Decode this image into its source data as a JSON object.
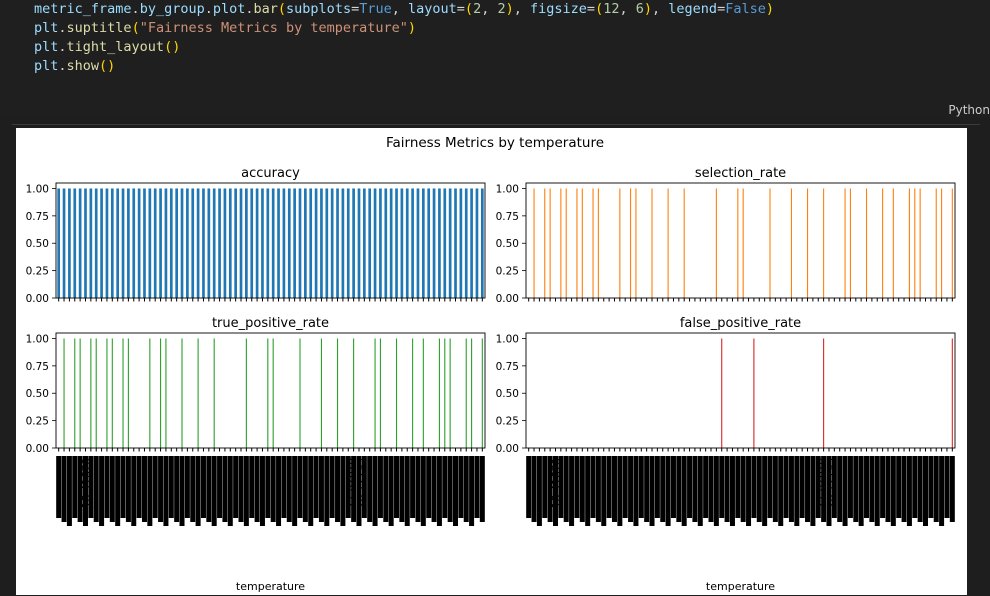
{
  "code": {
    "lines": [
      [
        {
          "t": "metric_frame",
          "c": "s-var"
        },
        {
          "t": ".",
          "c": "s-pun"
        },
        {
          "t": "by_group",
          "c": "s-var"
        },
        {
          "t": ".",
          "c": "s-pun"
        },
        {
          "t": "plot",
          "c": "s-var"
        },
        {
          "t": ".",
          "c": "s-pun"
        },
        {
          "t": "bar",
          "c": "s-fn"
        },
        {
          "t": "(",
          "c": "s-br"
        },
        {
          "t": "subplots",
          "c": "s-var"
        },
        {
          "t": "=",
          "c": "s-pun"
        },
        {
          "t": "True",
          "c": "s-kw"
        },
        {
          "t": ", ",
          "c": "s-pun"
        },
        {
          "t": "layout",
          "c": "s-var"
        },
        {
          "t": "=",
          "c": "s-pun"
        },
        {
          "t": "(",
          "c": "s-br"
        },
        {
          "t": "2",
          "c": "s-num"
        },
        {
          "t": ", ",
          "c": "s-pun"
        },
        {
          "t": "2",
          "c": "s-num"
        },
        {
          "t": ")",
          "c": "s-br"
        },
        {
          "t": ", ",
          "c": "s-pun"
        },
        {
          "t": "figsize",
          "c": "s-var"
        },
        {
          "t": "=",
          "c": "s-pun"
        },
        {
          "t": "(",
          "c": "s-br"
        },
        {
          "t": "12",
          "c": "s-num"
        },
        {
          "t": ", ",
          "c": "s-pun"
        },
        {
          "t": "6",
          "c": "s-num"
        },
        {
          "t": ")",
          "c": "s-br"
        },
        {
          "t": ", ",
          "c": "s-pun"
        },
        {
          "t": "legend",
          "c": "s-var"
        },
        {
          "t": "=",
          "c": "s-pun"
        },
        {
          "t": "False",
          "c": "s-kw"
        },
        {
          "t": ")",
          "c": "s-br"
        }
      ],
      [
        {
          "t": "plt",
          "c": "s-var"
        },
        {
          "t": ".",
          "c": "s-pun"
        },
        {
          "t": "suptitle",
          "c": "s-fn"
        },
        {
          "t": "(",
          "c": "s-br"
        },
        {
          "t": "\"Fairness Metrics by temperature\"",
          "c": "s-str"
        },
        {
          "t": ")",
          "c": "s-br"
        }
      ],
      [
        {
          "t": "plt",
          "c": "s-var"
        },
        {
          "t": ".",
          "c": "s-pun"
        },
        {
          "t": "tight_layout",
          "c": "s-fn"
        },
        {
          "t": "()",
          "c": "s-br"
        }
      ],
      [
        {
          "t": "plt",
          "c": "s-var"
        },
        {
          "t": ".",
          "c": "s-pun"
        },
        {
          "t": "show",
          "c": "s-fn"
        },
        {
          "t": "()",
          "c": "s-br"
        }
      ]
    ],
    "language_label": "Python"
  },
  "chart_data": {
    "type": "bar",
    "title": "Fairness Metrics by temperature",
    "xlabel": "temperature",
    "n_categories": 80,
    "visible_tick_labels": [
      "18.41670",
      "27.82620",
      "28.12795"
    ],
    "yticks": [
      "0.00",
      "0.25",
      "0.50",
      "0.75",
      "1.00"
    ],
    "ylim": [
      0,
      1.05
    ],
    "subplots": [
      {
        "name": "accuracy",
        "color": "#1f77b4",
        "values": [
          1,
          1,
          1,
          1,
          1,
          1,
          1,
          1,
          1,
          1,
          1,
          1,
          1,
          1,
          1,
          1,
          1,
          1,
          1,
          1,
          1,
          1,
          1,
          1,
          1,
          1,
          1,
          1,
          1,
          1,
          1,
          1,
          1,
          1,
          1,
          1,
          1,
          1,
          1,
          1,
          1,
          1,
          1,
          1,
          1,
          1,
          1,
          1,
          1,
          1,
          1,
          1,
          1,
          1,
          1,
          1,
          1,
          1,
          1,
          1,
          1,
          1,
          1,
          1,
          1,
          1,
          1,
          1,
          1,
          1,
          1,
          1,
          1,
          1,
          1,
          1,
          1,
          1,
          1,
          1
        ]
      },
      {
        "name": "selection_rate",
        "color": "#ff7f0e",
        "values": [
          0,
          1,
          0,
          1,
          1,
          0,
          1,
          1,
          0,
          1,
          1,
          0,
          1,
          1,
          0,
          0,
          0,
          1,
          0,
          1,
          1,
          0,
          0,
          1,
          0,
          0,
          1,
          0,
          0,
          1,
          0,
          0,
          0,
          0,
          0,
          1,
          0,
          0,
          0,
          1,
          1,
          0,
          0,
          0,
          0,
          1,
          0,
          0,
          0,
          1,
          0,
          0,
          1,
          0,
          0,
          1,
          0,
          0,
          0,
          1,
          1,
          0,
          0,
          1,
          0,
          0,
          1,
          0,
          1,
          0,
          0,
          1,
          1,
          1,
          0,
          0,
          1,
          1,
          0,
          1
        ]
      },
      {
        "name": "true_positive_rate",
        "color": "#2ca02c",
        "values": [
          0,
          1,
          0,
          1,
          1,
          0,
          1,
          1,
          0,
          1,
          1,
          0,
          1,
          1,
          0,
          0,
          0,
          1,
          0,
          1,
          1,
          0,
          0,
          1,
          0,
          0,
          1,
          0,
          0,
          1,
          0,
          0,
          0,
          0,
          0,
          1,
          0,
          0,
          0,
          1,
          1,
          0,
          0,
          0,
          0,
          1,
          0,
          0,
          0,
          1,
          0,
          0,
          1,
          0,
          0,
          1,
          0,
          0,
          0,
          1,
          1,
          0,
          0,
          1,
          0,
          0,
          1,
          0,
          1,
          0,
          0,
          1,
          1,
          1,
          0,
          0,
          1,
          1,
          0,
          1
        ]
      },
      {
        "name": "false_positive_rate",
        "color": "#d62728",
        "values": [
          0,
          0,
          0,
          0,
          0,
          0,
          0,
          0,
          0,
          0,
          0,
          0,
          0,
          0,
          0,
          0,
          0,
          0,
          0,
          0,
          0,
          0,
          0,
          0,
          0,
          0,
          0,
          0,
          0,
          0,
          0,
          0,
          0,
          0,
          0,
          0,
          1,
          0,
          0,
          0,
          0,
          0,
          1,
          0,
          0,
          0,
          0,
          0,
          0,
          0,
          0,
          0,
          0,
          0,
          0,
          1,
          0,
          0,
          0,
          0,
          0,
          0,
          0,
          0,
          0,
          0,
          0,
          0,
          0,
          0,
          0,
          0,
          0,
          0,
          0,
          0,
          0,
          0,
          0,
          1
        ]
      }
    ]
  }
}
